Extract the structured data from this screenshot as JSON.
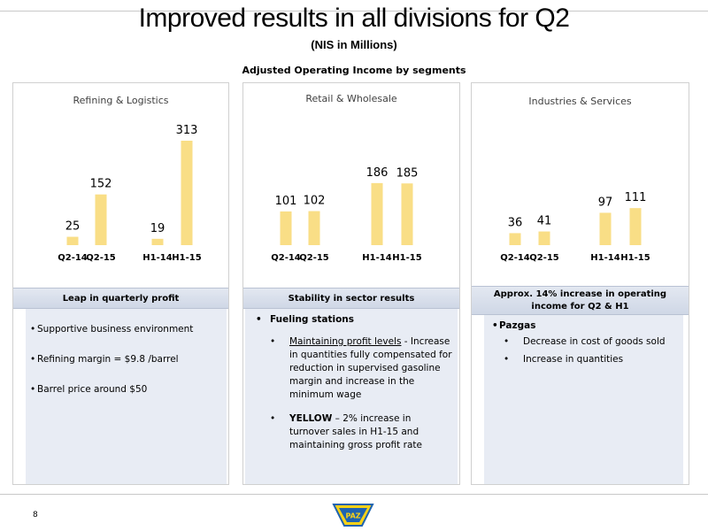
{
  "header": {
    "title": "Improved results in all divisions for Q2",
    "subtitle": "(NIS in Millions)",
    "section_title": "Adjusted Operating Income by segments"
  },
  "chart_data": [
    {
      "type": "bar",
      "title": "Refining & Logistics",
      "categories": [
        "Q2-14",
        "Q2-15",
        "H1-14",
        "H1-15"
      ],
      "values": [
        25,
        152,
        19,
        313
      ]
    },
    {
      "type": "bar",
      "title": "Retail & Wholesale",
      "categories": [
        "Q2-14",
        "Q2-15",
        "H1-14",
        "H1-15"
      ],
      "values": [
        101,
        102,
        186,
        185
      ]
    },
    {
      "type": "bar",
      "title": "Industries & Services",
      "categories": [
        "Q2-14",
        "Q2-15",
        "H1-14",
        "H1-15"
      ],
      "values": [
        36,
        41,
        97,
        111
      ]
    }
  ],
  "panels": [
    {
      "header": "Leap in quarterly profit",
      "bullets": [
        "Supportive business environment",
        "Refining margin = $9.8 /barrel",
        "Barrel price around $50"
      ]
    },
    {
      "header": "Stability in sector results",
      "heading": "Fueling stations",
      "item1_underlined": "Maintaining profit levels",
      "item1_rest": " - Increase in quantities fully compensated for reduction in supervised gasoline margin and increase in the minimum wage",
      "item2_bold": "YELLOW",
      "item2_rest": " – 2% increase in turnover sales in H1-15  and maintaining gross profit rate"
    },
    {
      "header": "Approx. 14% increase in operating income for Q2 & H1",
      "heading": "Pazgas",
      "subbullets": [
        "Decrease in cost of goods sold",
        "Increase in quantities"
      ]
    }
  ],
  "footer": {
    "page_number": "8",
    "logo_text": "PAZ"
  },
  "colors": {
    "bar": "#f9de86",
    "header_box": "#d6dde9",
    "notes_bg": "#e8ecf4",
    "logo_yellow": "#f7d117",
    "logo_blue": "#1e63b0"
  }
}
